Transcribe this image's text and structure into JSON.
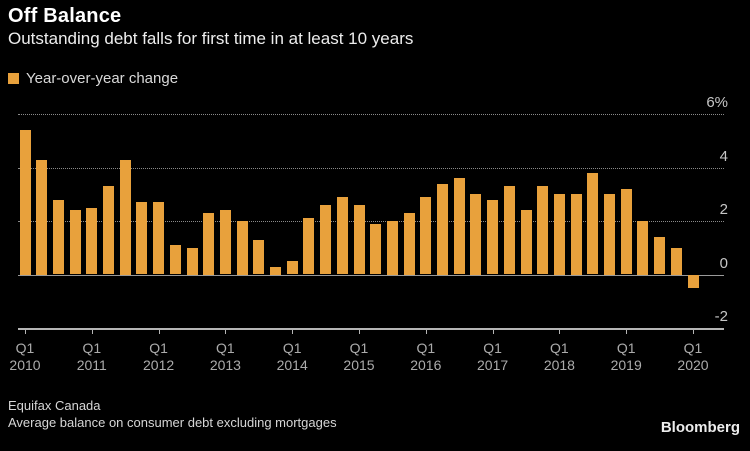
{
  "header": {
    "title": "Off Balance",
    "subtitle": "Outstanding debt falls for first time in at least 10 years"
  },
  "legend": {
    "label": "Year-over-year change"
  },
  "footer": {
    "source": "Equifax Canada",
    "note": "Average balance on consumer debt excluding mortgages",
    "brand": "Bloomberg"
  },
  "chart_data": {
    "type": "bar",
    "title": "Off Balance",
    "subtitle": "Outstanding debt falls for first time in at least 10 years",
    "series_name": "Year-over-year change",
    "unit": "%",
    "categories": [
      "Q1 2010",
      "Q2 2010",
      "Q3 2010",
      "Q4 2010",
      "Q1 2011",
      "Q2 2011",
      "Q3 2011",
      "Q4 2011",
      "Q1 2012",
      "Q2 2012",
      "Q3 2012",
      "Q4 2012",
      "Q1 2013",
      "Q2 2013",
      "Q3 2013",
      "Q4 2013",
      "Q1 2014",
      "Q2 2014",
      "Q3 2014",
      "Q4 2014",
      "Q1 2015",
      "Q2 2015",
      "Q3 2015",
      "Q4 2015",
      "Q1 2016",
      "Q2 2016",
      "Q3 2016",
      "Q4 2016",
      "Q1 2017",
      "Q2 2017",
      "Q3 2017",
      "Q4 2017",
      "Q1 2018",
      "Q2 2018",
      "Q3 2018",
      "Q4 2018",
      "Q1 2019",
      "Q2 2019",
      "Q3 2019",
      "Q4 2019",
      "Q1 2020"
    ],
    "values": [
      5.4,
      4.3,
      2.8,
      2.4,
      2.5,
      3.3,
      4.3,
      2.7,
      2.7,
      1.1,
      1.0,
      2.3,
      2.4,
      2.0,
      1.3,
      0.3,
      0.5,
      2.1,
      2.6,
      2.9,
      2.6,
      1.9,
      2.0,
      2.3,
      2.9,
      3.4,
      3.6,
      3.0,
      2.8,
      3.3,
      2.4,
      3.3,
      3.0,
      3.0,
      3.8,
      3.0,
      3.2,
      2.0,
      1.4,
      1.0,
      -0.5
    ],
    "ylim": [
      -2,
      6
    ],
    "yticks": [
      {
        "value": 6,
        "label": "6%"
      },
      {
        "value": 4,
        "label": "4"
      },
      {
        "value": 2,
        "label": "2"
      },
      {
        "value": 0,
        "label": "0"
      },
      {
        "value": -2,
        "label": "-2"
      }
    ],
    "xticks": [
      {
        "line1": "Q1",
        "line2": "2010"
      },
      {
        "line1": "Q1",
        "line2": "2011"
      },
      {
        "line1": "Q1",
        "line2": "2012"
      },
      {
        "line1": "Q1",
        "line2": "2013"
      },
      {
        "line1": "Q1",
        "line2": "2014"
      },
      {
        "line1": "Q1",
        "line2": "2015"
      },
      {
        "line1": "Q1",
        "line2": "2016"
      },
      {
        "line1": "Q1",
        "line2": "2017"
      },
      {
        "line1": "Q1",
        "line2": "2018"
      },
      {
        "line1": "Q1",
        "line2": "2019"
      },
      {
        "line1": "Q1",
        "line2": "2020"
      }
    ],
    "grid": "horizontal-dotted",
    "legend_position": "top-left",
    "yaxis_side": "right",
    "colors": {
      "bar": "#E8A13C",
      "background": "#000000",
      "gridline": "#8A8A8A",
      "zero_line": "#9A9A9A",
      "axis": "#B5B5B5"
    }
  }
}
